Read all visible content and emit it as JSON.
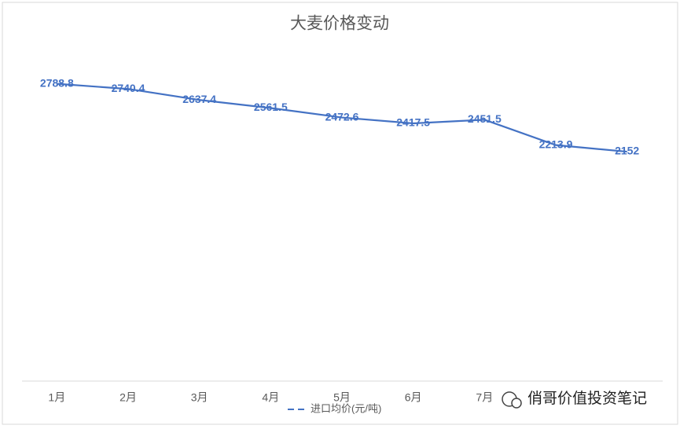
{
  "chart_data": {
    "type": "line",
    "title": "大麦价格变动",
    "categories": [
      "1月",
      "2月",
      "3月",
      "4月",
      "5月",
      "6月",
      "7月",
      null,
      null
    ],
    "series": [
      {
        "name": "进口均价(元/吨)",
        "color": "#4472c4",
        "values": [
          2788.8,
          2740.4,
          2637.4,
          2561.5,
          2472.6,
          2417.5,
          2451.5,
          2213.9,
          2152
        ]
      }
    ],
    "ylim": [
      0,
      3000
    ],
    "legend": "bottom",
    "watermark": "俏哥价值投资笔记"
  }
}
